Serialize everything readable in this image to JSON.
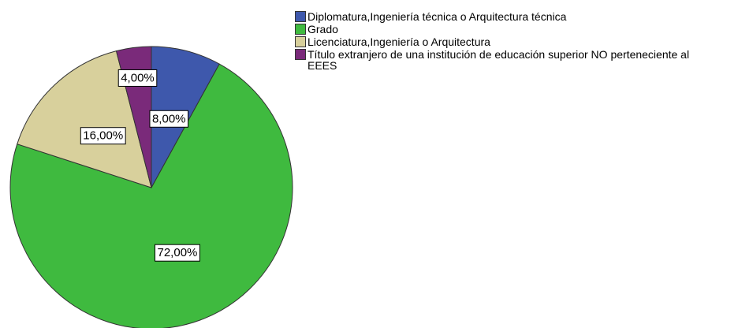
{
  "chart_data": {
    "type": "pie",
    "categories": [
      "Diplomatura,Ingeniería técnica o Arquitectura técnica",
      "Grado",
      "Licenciatura,Ingeniería o Arquitectura",
      "Título extranjero de una institución de educación superior NO perteneciente al EEES"
    ],
    "values": [
      8,
      72,
      16,
      4
    ],
    "value_labels": [
      "8,00%",
      "72,00%",
      "16,00%",
      "4,00%"
    ],
    "colors": [
      "#3e58ac",
      "#3fba3f",
      "#d8d09c",
      "#7a2a7a"
    ]
  }
}
